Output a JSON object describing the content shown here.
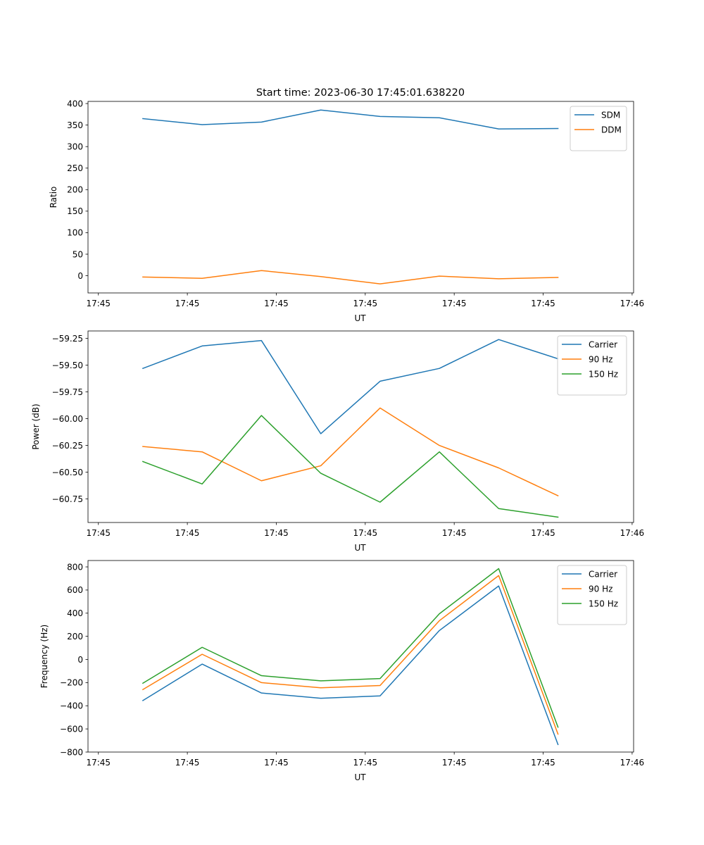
{
  "page": {
    "title": "Start time: 2023-06-30 17:45:01.638220"
  },
  "chart_data": [
    {
      "type": "line",
      "title": "Start time: 2023-06-30 17:45:01.638220",
      "xlabel": "UT",
      "ylabel": "Ratio",
      "x_tick_labels": [
        "17:45",
        "17:45",
        "17:45",
        "17:45",
        "17:45",
        "17:45",
        "17:46"
      ],
      "x_tick_values": [
        0,
        6,
        12,
        18,
        24,
        30,
        36
      ],
      "xlim": [
        -0.7,
        36.1
      ],
      "y_ticks": [
        0,
        50,
        100,
        150,
        200,
        250,
        300,
        350,
        400
      ],
      "ylim": [
        -40,
        405
      ],
      "legend": "top-right",
      "x": [
        3,
        7,
        11,
        15,
        19,
        23,
        27,
        31
      ],
      "series": [
        {
          "name": "SDM",
          "color": "#1f77b4",
          "values": [
            365,
            351,
            357,
            385,
            370,
            367,
            341,
            342
          ]
        },
        {
          "name": "DDM",
          "color": "#ff7f0e",
          "values": [
            -3,
            -6,
            12,
            -2,
            -19,
            -1,
            -7,
            -4
          ]
        }
      ]
    },
    {
      "type": "line",
      "xlabel": "UT",
      "ylabel": "Power (dB)",
      "x_tick_labels": [
        "17:45",
        "17:45",
        "17:45",
        "17:45",
        "17:45",
        "17:45",
        "17:46"
      ],
      "x_tick_values": [
        0,
        6,
        12,
        18,
        24,
        30,
        36
      ],
      "xlim": [
        -0.7,
        36.1
      ],
      "y_ticks": [
        -60.75,
        -60.5,
        -60.25,
        -60.0,
        -59.75,
        -59.5,
        -59.25
      ],
      "y_tick_labels": [
        "−60.75",
        "−60.50",
        "−60.25",
        "−60.00",
        "−59.75",
        "−59.50",
        "−59.25"
      ],
      "ylim": [
        -60.97,
        -59.18
      ],
      "legend": "top-right",
      "x": [
        3,
        7,
        11,
        15,
        19,
        23,
        27,
        31
      ],
      "series": [
        {
          "name": "Carrier",
          "color": "#1f77b4",
          "values": [
            -59.53,
            -59.32,
            -59.27,
            -60.14,
            -59.65,
            -59.53,
            -59.26,
            -59.44
          ]
        },
        {
          "name": "90 Hz",
          "color": "#ff7f0e",
          "values": [
            -60.26,
            -60.31,
            -60.58,
            -60.44,
            -59.9,
            -60.25,
            -60.46,
            -60.72
          ]
        },
        {
          "name": "150 Hz",
          "color": "#2ca02c",
          "values": [
            -60.4,
            -60.61,
            -59.97,
            -60.51,
            -60.78,
            -60.31,
            -60.84,
            -60.92
          ]
        }
      ]
    },
    {
      "type": "line",
      "xlabel": "UT",
      "ylabel": "Frequency (Hz)",
      "x_tick_labels": [
        "17:45",
        "17:45",
        "17:45",
        "17:45",
        "17:45",
        "17:45",
        "17:46"
      ],
      "x_tick_values": [
        0,
        6,
        12,
        18,
        24,
        30,
        36
      ],
      "xlim": [
        -0.7,
        36.1
      ],
      "y_ticks": [
        -800,
        -600,
        -400,
        -200,
        0,
        200,
        400,
        600,
        800
      ],
      "y_tick_labels": [
        "−800",
        "−600",
        "−400",
        "−200",
        "0",
        "200",
        "400",
        "600",
        "800"
      ],
      "ylim": [
        -800,
        855
      ],
      "legend": "top-right",
      "x": [
        3,
        7,
        11,
        15,
        19,
        23,
        27,
        31
      ],
      "series": [
        {
          "name": "Carrier",
          "color": "#1f77b4",
          "values": [
            -355,
            -40,
            -290,
            -335,
            -315,
            250,
            635,
            -735
          ]
        },
        {
          "name": "90 Hz",
          "color": "#ff7f0e",
          "values": [
            -260,
            45,
            -200,
            -245,
            -225,
            335,
            725,
            -645
          ]
        },
        {
          "name": "150 Hz",
          "color": "#2ca02c",
          "values": [
            -205,
            105,
            -140,
            -185,
            -165,
            395,
            785,
            -585
          ]
        }
      ]
    }
  ]
}
